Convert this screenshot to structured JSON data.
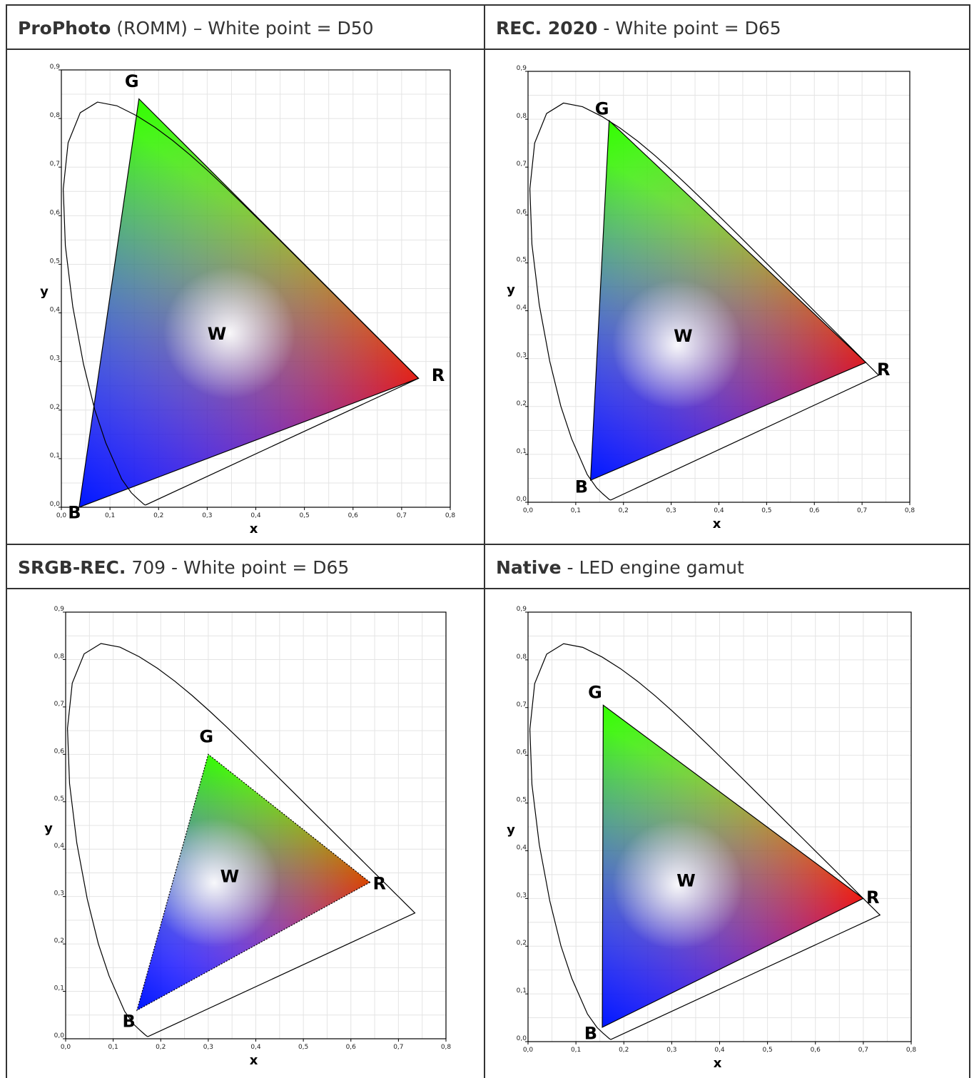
{
  "panels": [
    {
      "title_bold": "ProPhoto",
      "title_rest": " (ROMM) – White point = D50"
    },
    {
      "title_bold": "REC. 2020",
      "title_rest": " - White point = D65"
    },
    {
      "title_bold": "SRGB-REC.",
      "title_rest": " 709 - White point = D65"
    },
    {
      "title_bold": "Native",
      "title_rest": " - LED engine gamut"
    }
  ],
  "chart_data": [
    {
      "type": "scatter",
      "subtype": "cie-1931-chromaticity-gamut",
      "xlabel": "x",
      "ylabel": "y",
      "xlim": [
        0.0,
        0.8
      ],
      "ylim": [
        0.0,
        0.9
      ],
      "xticks": [
        "0,0",
        "0,1",
        "0,2",
        "0,3",
        "0,4",
        "0,5",
        "0,6",
        "0,7",
        "0,8"
      ],
      "yticks": [
        "0,0",
        "0,1",
        "0,2",
        "0,3",
        "0,4",
        "0,5",
        "0,6",
        "0,7",
        "0,8",
        "0,9"
      ],
      "grid": true,
      "gamut": [
        {
          "label": "R",
          "x": 0.7347,
          "y": 0.2653
        },
        {
          "label": "G",
          "x": 0.1596,
          "y": 0.8404
        },
        {
          "label": "B",
          "x": 0.0366,
          "y": 0.0001
        }
      ],
      "white_point": {
        "label": "W",
        "x": 0.3457,
        "y": 0.3585
      },
      "triangle_style": "solid",
      "label_positions": {
        "R": [
          0.775,
          0.26
        ],
        "G": [
          0.145,
          0.865
        ],
        "B": [
          0.027,
          -0.023
        ],
        "W": [
          0.32,
          0.345
        ]
      }
    },
    {
      "type": "scatter",
      "subtype": "cie-1931-chromaticity-gamut",
      "xlabel": "x",
      "ylabel": "y",
      "xlim": [
        0.0,
        0.8
      ],
      "ylim": [
        0.0,
        0.9
      ],
      "xticks": [
        "0,0",
        "0,1",
        "0,2",
        "0,3",
        "0,4",
        "0,5",
        "0,6",
        "0,7",
        "0,8"
      ],
      "yticks": [
        "0,0",
        "0,1",
        "0,2",
        "0,3",
        "0,4",
        "0,5",
        "0,6",
        "0,7",
        "0,8",
        "0,9"
      ],
      "grid": true,
      "gamut": [
        {
          "label": "R",
          "x": 0.708,
          "y": 0.292
        },
        {
          "label": "G",
          "x": 0.17,
          "y": 0.797
        },
        {
          "label": "B",
          "x": 0.131,
          "y": 0.046
        }
      ],
      "white_point": {
        "label": "W",
        "x": 0.3127,
        "y": 0.329
      },
      "triangle_style": "solid",
      "label_positions": {
        "R": [
          0.745,
          0.265
        ],
        "G": [
          0.155,
          0.81
        ],
        "B": [
          0.112,
          0.02
        ],
        "W": [
          0.325,
          0.335
        ]
      }
    },
    {
      "type": "scatter",
      "subtype": "cie-1931-chromaticity-gamut",
      "xlabel": "x",
      "ylabel": "y",
      "xlim": [
        0.0,
        0.8
      ],
      "ylim": [
        0.0,
        0.9
      ],
      "xticks": [
        "0,0",
        "0,1",
        "0,2",
        "0,3",
        "0,4",
        "0,5",
        "0,6",
        "0,7",
        "0,8"
      ],
      "yticks": [
        "0,0",
        "0,1",
        "0,2",
        "0,3",
        "0,4",
        "0,5",
        "0,6",
        "0,7",
        "0,8",
        "0,9"
      ],
      "grid": true,
      "gamut": [
        {
          "label": "R",
          "x": 0.64,
          "y": 0.33
        },
        {
          "label": "G",
          "x": 0.3,
          "y": 0.6
        },
        {
          "label": "B",
          "x": 0.15,
          "y": 0.06
        }
      ],
      "white_point": {
        "label": "W",
        "x": 0.3127,
        "y": 0.329
      },
      "triangle_style": "dotted",
      "label_positions": {
        "R": [
          0.66,
          0.315
        ],
        "G": [
          0.296,
          0.625
        ],
        "B": [
          0.133,
          0.025
        ],
        "W": [
          0.345,
          0.33
        ]
      }
    },
    {
      "type": "scatter",
      "subtype": "cie-1931-chromaticity-gamut",
      "xlabel": "x",
      "ylabel": "y",
      "xlim": [
        0.0,
        0.8
      ],
      "ylim": [
        0.0,
        0.9
      ],
      "xticks": [
        "0,0",
        "0,1",
        "0,2",
        "0,3",
        "0,4",
        "0,5",
        "0,6",
        "0,7",
        "0,8"
      ],
      "yticks": [
        "0,0",
        "0,1",
        "0,2",
        "0,3",
        "0,4",
        "0,5",
        "0,6",
        "0,7",
        "0,8",
        "0,9"
      ],
      "grid": true,
      "gamut": [
        {
          "label": "R",
          "x": 0.7,
          "y": 0.3
        },
        {
          "label": "G",
          "x": 0.157,
          "y": 0.705
        },
        {
          "label": "B",
          "x": 0.155,
          "y": 0.03
        }
      ],
      "white_point": {
        "label": "W",
        "x": 0.3127,
        "y": 0.329
      },
      "triangle_style": "solid",
      "label_positions": {
        "R": [
          0.72,
          0.29
        ],
        "G": [
          0.14,
          0.72
        ],
        "B": [
          0.131,
          0.005
        ],
        "W": [
          0.33,
          0.325
        ]
      }
    }
  ]
}
